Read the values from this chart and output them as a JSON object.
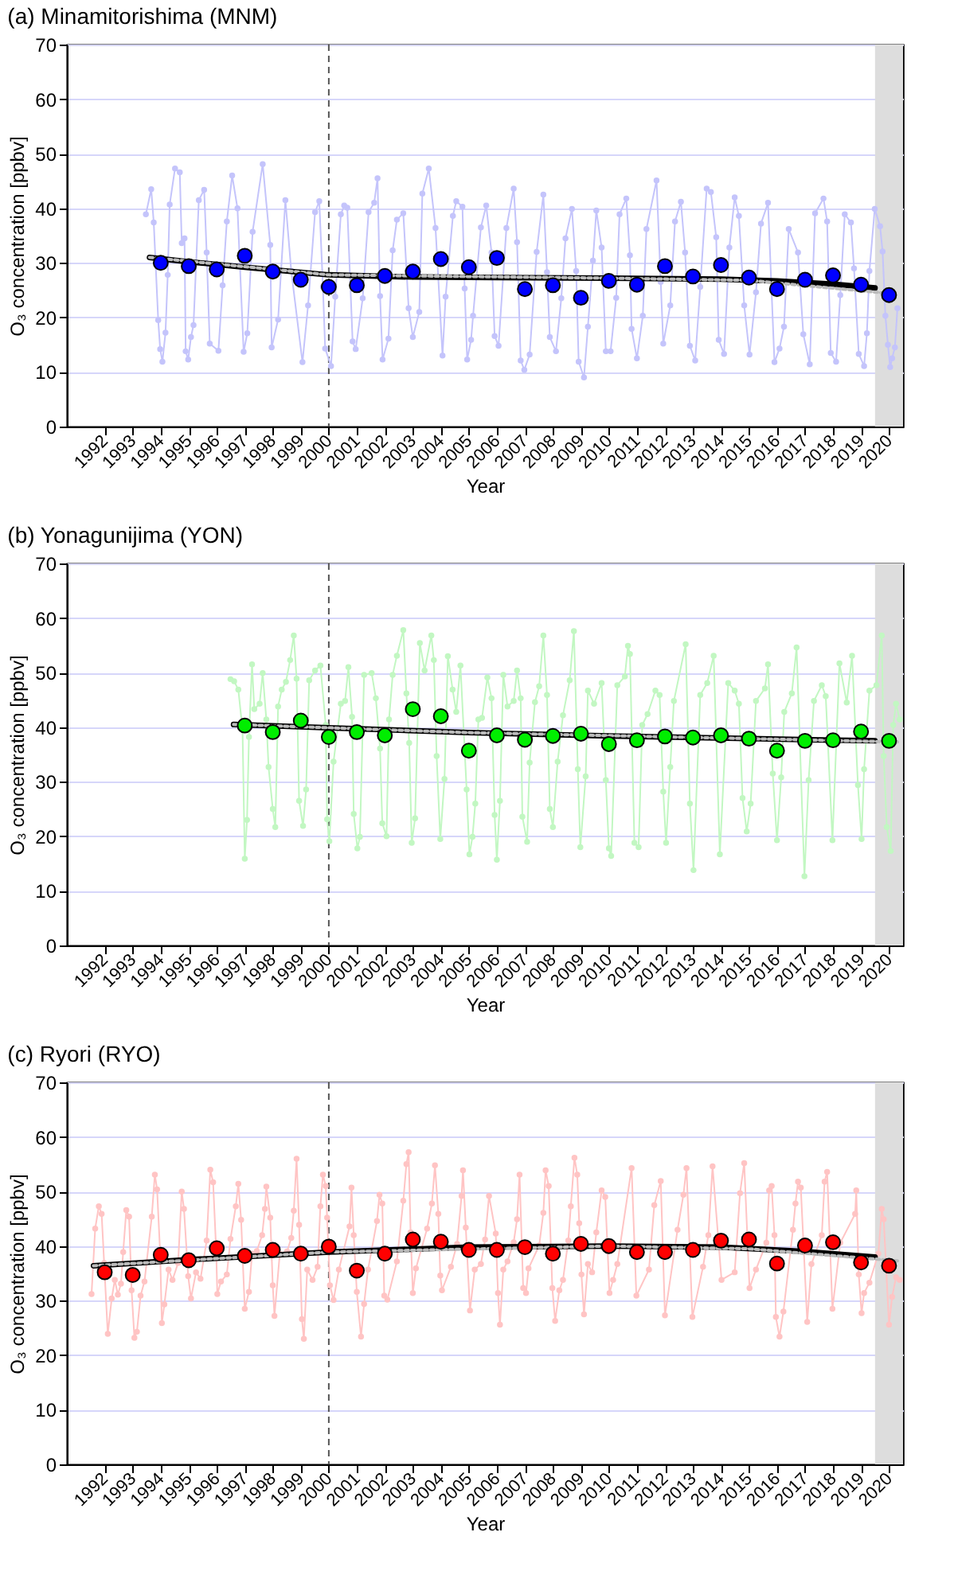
{
  "chart_data": [
    {
      "type": "line",
      "title": "(a) Minamitorishima (MNM)",
      "xlabel": "Year",
      "ylabel": "O₃ concentration [ppbv]",
      "xlim": [
        1990.65,
        2020.5
      ],
      "ylim": [
        0,
        70
      ],
      "xticks": [
        1992,
        1993,
        1994,
        1995,
        1996,
        1997,
        1998,
        1999,
        2000,
        2001,
        2002,
        2003,
        2004,
        2005,
        2006,
        2007,
        2008,
        2009,
        2010,
        2011,
        2012,
        2013,
        2014,
        2015,
        2016,
        2017,
        2018,
        2019,
        2020
      ],
      "yticks": [
        0,
        10,
        20,
        30,
        40,
        50,
        60,
        70
      ],
      "grid": "y",
      "ref_lines": [
        {
          "axis": "x",
          "value": 2000,
          "color": "#555555",
          "line_style": "dashed"
        }
      ],
      "bands": [
        {
          "axis": "x",
          "from": 2019.5,
          "to": 2020.5,
          "color": "#dddddd"
        }
      ],
      "series": [
        {
          "color": "#c4c4fb",
          "marker": "circle",
          "x": [
            1993.47,
            1993.66,
            1993.75,
            1993.91,
            1993.98,
            1994.06,
            1994.17,
            1994.25,
            1994.32,
            1994.51,
            1994.68,
            1994.75,
            1994.85,
            1994.89,
            1994.98,
            1995.08,
            1995.17,
            1995.36,
            1995.55,
            1995.64,
            1995.75,
            1996.06,
            1996.21,
            1996.36,
            1996.55,
            1996.74,
            1996.96,
            1997.09,
            1997.28,
            1997.64,
            1997.91,
            1997.96,
            1998.19,
            1998.45,
            1998.66,
            1999.06,
            1999.26,
            1999.51,
            1999.66,
            1999.79,
            1999.87,
            2000.08,
            2000.23,
            2000.43,
            2000.55,
            2000.66,
            2000.85,
            2000.96,
            2001.21,
            2001.42,
            2001.62,
            2001.74,
            2001.83,
            2001.92,
            2002.13,
            2002.28,
            2002.43,
            2002.66,
            2002.85,
            2003.0,
            2003.23,
            2003.34,
            2003.57,
            2003.81,
            2004.06,
            2004.17,
            2004.43,
            2004.55,
            2004.77,
            2004.85,
            2004.94,
            2005.08,
            2005.15,
            2005.43,
            2005.62,
            2005.81,
            2005.92,
            2006.06,
            2006.34,
            2006.6,
            2006.72,
            2006.85,
            2006.98,
            2007.17,
            2007.42,
            2007.66,
            2007.79,
            2007.89,
            2008.11,
            2008.3,
            2008.45,
            2008.68,
            2008.83,
            2008.92,
            2009.11,
            2009.25,
            2009.43,
            2009.55,
            2009.74,
            2009.89,
            2010.06,
            2010.26,
            2010.38,
            2010.62,
            2010.75,
            2010.81,
            2011.0,
            2011.21,
            2011.34,
            2011.7,
            2011.85,
            2011.94,
            2012.19,
            2012.36,
            2012.57,
            2012.72,
            2012.89,
            2013.08,
            2013.26,
            2013.49,
            2013.64,
            2013.83,
            2013.92,
            2014.11,
            2014.3,
            2014.49,
            2014.64,
            2014.83,
            2015.02,
            2015.25,
            2015.43,
            2015.68,
            2015.91,
            2016.09,
            2016.25,
            2016.42,
            2016.75,
            2016.94,
            2017.17,
            2017.36,
            2017.66,
            2017.79,
            2017.92,
            2018.11,
            2018.26,
            2018.42,
            2018.64,
            2018.75,
            2018.92,
            2019.11,
            2019.21,
            2019.3,
            2019.49,
            2019.68,
            2019.77,
            2019.87,
            2019.96,
            2020.04,
            2020.11,
            2020.21,
            2020.3
          ],
          "values": [
            38.9,
            43.5,
            37.4,
            19.5,
            14.2,
            11.9,
            17.2,
            27.8,
            40.7,
            47.3,
            46.6,
            33.6,
            34.5,
            13.8,
            12.3,
            16.4,
            18.6,
            41.5,
            43.4,
            31.9,
            15.2,
            13.9,
            25.9,
            37.6,
            46.0,
            40.0,
            13.7,
            17.1,
            35.7,
            48.1,
            33.3,
            14.5,
            19.6,
            41.5,
            28.5,
            11.8,
            22.2,
            39.3,
            41.3,
            25.6,
            14.3,
            11.1,
            23.8,
            38.9,
            40.5,
            40.1,
            15.6,
            14.2,
            23.5,
            39.3,
            41.0,
            45.5,
            23.9,
            12.3,
            16.1,
            32.3,
            37.9,
            39.1,
            21.7,
            16.4,
            21.0,
            42.7,
            47.3,
            36.4,
            13.0,
            23.8,
            38.6,
            41.3,
            40.3,
            25.3,
            12.3,
            15.9,
            20.3,
            36.5,
            40.5,
            31.9,
            16.6,
            14.8,
            36.4,
            43.6,
            33.8,
            12.1,
            10.4,
            13.2,
            32.0,
            42.5,
            28.3,
            16.4,
            13.8,
            23.5,
            34.5,
            39.9,
            28.5,
            11.9,
            9.0,
            18.3,
            30.4,
            39.6,
            32.8,
            13.8,
            13.8,
            23.6,
            38.9,
            41.8,
            31.4,
            17.9,
            12.5,
            20.3,
            36.2,
            45.1,
            26.5,
            15.2,
            22.2,
            37.6,
            41.2,
            31.9,
            14.8,
            12.1,
            25.6,
            43.6,
            43.0,
            34.7,
            15.9,
            13.3,
            32.8,
            42.0,
            38.6,
            22.2,
            13.2,
            24.6,
            37.2,
            41.0,
            11.8,
            14.3,
            18.3,
            36.2,
            31.9,
            16.9,
            11.4,
            39.1,
            41.8,
            37.6,
            13.5,
            11.9,
            24.1,
            38.9,
            37.4,
            29.0,
            13.3,
            11.1,
            17.1,
            28.5,
            39.9,
            36.7,
            32.1,
            20.3,
            15.0,
            10.9,
            12.5,
            14.5,
            21.7
          ]
        },
        {
          "type": "scatter",
          "color": "#0000ff",
          "marker": "circle",
          "x": [
            1994,
            1995,
            1996,
            1997,
            1998,
            1999,
            2000,
            2001,
            2002,
            2003,
            2004,
            2005,
            2006,
            2007,
            2008,
            2009,
            2010,
            2011,
            2012,
            2013,
            2014,
            2015,
            2016,
            2017,
            2018,
            2019,
            2020
          ],
          "values": [
            30.0,
            29.4,
            28.8,
            31.3,
            28.4,
            26.9,
            25.6,
            25.9,
            27.6,
            28.4,
            30.7,
            29.2,
            30.9,
            25.2,
            25.9,
            23.6,
            26.7,
            26.0,
            29.4,
            27.5,
            29.6,
            27.3,
            25.2,
            26.9,
            27.7,
            26.0,
            24.1
          ]
        },
        {
          "color": "#000000",
          "x": [
            1993.6,
            1995,
            1997,
            2000,
            2003,
            2006,
            2010,
            2014,
            2016,
            2018,
            2019.5
          ],
          "values": [
            31.0,
            30.2,
            29.2,
            27.8,
            27.4,
            27.3,
            27.2,
            27.0,
            26.7,
            26.1,
            25.4
          ]
        },
        {
          "color": "#bbbbbb",
          "line_style": "dotted",
          "x": [
            1993.6,
            2000,
            2010,
            2015,
            2020.2
          ],
          "values": [
            31.0,
            27.8,
            27.2,
            26.8,
            24.3
          ]
        }
      ]
    },
    {
      "type": "line",
      "title": "(b) Yonagunijima (YON)",
      "xlabel": "Year",
      "ylabel": "O₃ concentration [ppbv]",
      "xlim": [
        1990.65,
        2020.5
      ],
      "ylim": [
        0,
        70
      ],
      "xticks": [
        1992,
        1993,
        1994,
        1995,
        1996,
        1997,
        1998,
        1999,
        2000,
        2001,
        2002,
        2003,
        2004,
        2005,
        2006,
        2007,
        2008,
        2009,
        2010,
        2011,
        2012,
        2013,
        2014,
        2015,
        2016,
        2017,
        2018,
        2019,
        2020
      ],
      "yticks": [
        0,
        10,
        20,
        30,
        40,
        50,
        60,
        70
      ],
      "grid": "y",
      "ref_lines": [
        {
          "axis": "x",
          "value": 2000,
          "color": "#555555",
          "line_style": "dashed"
        }
      ],
      "bands": [
        {
          "axis": "x",
          "from": 2019.5,
          "to": 2020.5,
          "color": "#dddddd"
        }
      ],
      "series": [
        {
          "color": "#c2f7c2",
          "marker": "circle",
          "x": [
            1996.49,
            1996.62,
            1996.77,
            1996.92,
            1997.0,
            1997.08,
            1997.15,
            1997.26,
            1997.34,
            1997.53,
            1997.64,
            1997.77,
            1997.85,
            1998.0,
            1998.09,
            1998.19,
            1998.32,
            1998.47,
            1998.62,
            1998.75,
            1998.85,
            1998.94,
            1999.08,
            1999.19,
            1999.3,
            1999.51,
            1999.7,
            1999.89,
            1999.94,
            2000.02,
            2000.17,
            2000.43,
            2000.58,
            2000.7,
            2000.83,
            2000.89,
            2001.02,
            2001.11,
            2001.26,
            2001.53,
            2001.68,
            2001.83,
            2001.91,
            2002.06,
            2002.15,
            2002.28,
            2002.43,
            2002.66,
            2002.77,
            2002.87,
            2002.96,
            2003.08,
            2003.25,
            2003.42,
            2003.66,
            2003.75,
            2003.85,
            2003.98,
            2004.13,
            2004.25,
            2004.42,
            2004.55,
            2004.7,
            2004.92,
            2005.02,
            2005.13,
            2005.23,
            2005.34,
            2005.47,
            2005.66,
            2005.81,
            2005.92,
            2006.0,
            2006.11,
            2006.23,
            2006.38,
            2006.6,
            2006.72,
            2006.85,
            2006.91,
            2007.08,
            2007.17,
            2007.36,
            2007.51,
            2007.66,
            2007.79,
            2007.89,
            2008.0,
            2008.17,
            2008.36,
            2008.6,
            2008.75,
            2008.89,
            2008.98,
            2009.17,
            2009.25,
            2009.47,
            2009.74,
            2009.89,
            2010.0,
            2010.08,
            2010.3,
            2010.57,
            2010.68,
            2010.75,
            2010.91,
            2011.06,
            2011.19,
            2011.38,
            2011.66,
            2011.81,
            2011.94,
            2012.04,
            2012.19,
            2012.32,
            2012.74,
            2012.89,
            2013.02,
            2013.26,
            2013.51,
            2013.74,
            2013.96,
            2014.26,
            2014.49,
            2014.64,
            2014.77,
            2014.92,
            2015.06,
            2015.25,
            2015.57,
            2015.68,
            2015.85,
            2016.0,
            2016.15,
            2016.26,
            2016.53,
            2016.7,
            2016.98,
            2017.13,
            2017.32,
            2017.6,
            2017.74,
            2017.98,
            2018.23,
            2018.49,
            2018.68,
            2018.89,
            2019.02,
            2019.11,
            2019.3,
            2019.55,
            2019.74,
            2019.81,
            2019.92,
            2020.06,
            2020.15,
            2020.25,
            2020.38
          ],
          "values": [
            48.8,
            48.4,
            46.9,
            39.5,
            15.9,
            23.0,
            38.2,
            51.5,
            43.3,
            44.3,
            49.9,
            41.4,
            32.7,
            25.0,
            21.7,
            43.8,
            46.9,
            48.3,
            52.3,
            56.8,
            48.9,
            26.5,
            21.9,
            28.6,
            48.6,
            50.4,
            51.3,
            40.4,
            23.1,
            19.1,
            33.7,
            44.3,
            44.8,
            51.0,
            41.9,
            24.1,
            17.8,
            19.9,
            49.6,
            49.9,
            45.3,
            36.1,
            22.4,
            20.0,
            41.4,
            49.6,
            53.1,
            57.8,
            46.2,
            37.1,
            18.8,
            23.3,
            55.4,
            50.4,
            56.8,
            52.3,
            34.7,
            19.5,
            30.5,
            53.0,
            46.9,
            42.8,
            51.3,
            28.6,
            16.7,
            19.9,
            26.0,
            41.4,
            41.7,
            49.1,
            45.3,
            23.9,
            15.7,
            26.5,
            49.6,
            43.8,
            44.8,
            50.4,
            45.3,
            23.6,
            19.0,
            33.5,
            44.6,
            47.5,
            56.8,
            45.9,
            25.0,
            21.7,
            33.7,
            42.2,
            48.6,
            57.6,
            32.3,
            18.0,
            31.0,
            46.7,
            44.3,
            48.1,
            30.3,
            17.8,
            16.4,
            47.7,
            49.3,
            54.9,
            53.4,
            18.8,
            18.0,
            40.4,
            42.4,
            46.7,
            45.9,
            28.2,
            18.8,
            32.7,
            44.8,
            55.2,
            26.0,
            13.8,
            45.9,
            48.1,
            53.1,
            16.7,
            48.1,
            46.7,
            44.3,
            27.0,
            20.9,
            26.0,
            44.8,
            47.1,
            51.5,
            31.5,
            19.3,
            30.8,
            42.8,
            46.2,
            54.6,
            12.7,
            30.3,
            44.8,
            47.7,
            45.7,
            19.3,
            51.7,
            44.5,
            53.1,
            29.4,
            19.5,
            32.3,
            46.7,
            47.7,
            56.8,
            34.7,
            21.7,
            17.3,
            40.4,
            44.3,
            41.4
          ]
        },
        {
          "type": "scatter",
          "color": "#00ee00",
          "marker": "circle",
          "x": [
            1997,
            1998,
            1999,
            2000,
            2001,
            2002,
            2003,
            2004,
            2005,
            2006,
            2007,
            2008,
            2009,
            2010,
            2011,
            2012,
            2013,
            2014,
            2015,
            2016,
            2017,
            2018,
            2019,
            2020
          ],
          "values": [
            40.3,
            39.1,
            41.2,
            38.2,
            39.1,
            38.5,
            43.3,
            42.0,
            35.7,
            38.5,
            37.7,
            38.4,
            38.8,
            36.9,
            37.6,
            38.3,
            38.1,
            38.5,
            37.9,
            35.7,
            37.5,
            37.6,
            39.2,
            37.5
          ]
        },
        {
          "color": "#000000",
          "x": [
            1996.6,
            2000,
            2005,
            2010,
            2015,
            2019.5
          ],
          "values": [
            40.5,
            39.9,
            39.0,
            38.4,
            37.9,
            37.5
          ]
        },
        {
          "color": "#bbbbbb",
          "line_style": "dotted",
          "x": [
            1996.6,
            2005,
            2015,
            2020.3
          ],
          "values": [
            40.5,
            39.0,
            37.9,
            37.3
          ]
        }
      ]
    },
    {
      "type": "line",
      "title": "(c) Ryori (RYO)",
      "xlabel": "Year",
      "ylabel": "O₃ concentration [ppbv]",
      "xlim": [
        1990.65,
        2020.5
      ],
      "ylim": [
        0,
        70
      ],
      "xticks": [
        1992,
        1993,
        1994,
        1995,
        1996,
        1997,
        1998,
        1999,
        2000,
        2001,
        2002,
        2003,
        2004,
        2005,
        2006,
        2007,
        2008,
        2009,
        2010,
        2011,
        2012,
        2013,
        2014,
        2015,
        2016,
        2017,
        2018,
        2019,
        2020
      ],
      "yticks": [
        0,
        10,
        20,
        30,
        40,
        50,
        60,
        70
      ],
      "grid": "y",
      "ref_lines": [
        {
          "axis": "x",
          "value": 2000,
          "color": "#555555",
          "line_style": "dashed"
        }
      ],
      "bands": [
        {
          "axis": "x",
          "from": 2019.5,
          "to": 2020.5,
          "color": "#dddddd"
        }
      ],
      "series": [
        {
          "color": "#ffc4c4",
          "marker": "circle",
          "x": [
            1991.53,
            1991.66,
            1991.79,
            1991.89,
            1991.98,
            1992.11,
            1992.25,
            1992.36,
            1992.47,
            1992.58,
            1992.66,
            1992.77,
            1992.87,
            1992.96,
            1993.06,
            1993.15,
            1993.28,
            1993.42,
            1993.68,
            1993.79,
            1993.87,
            1993.98,
            1994.04,
            1994.13,
            1994.28,
            1994.42,
            1994.62,
            1994.75,
            1994.83,
            1994.98,
            1995.08,
            1995.26,
            1995.42,
            1995.64,
            1995.77,
            1995.87,
            1995.98,
            1996.02,
            1996.15,
            1996.36,
            1996.49,
            1996.68,
            1996.77,
            1996.87,
            1997.0,
            1997.15,
            1997.26,
            1997.43,
            1997.62,
            1997.72,
            1997.77,
            1997.91,
            1998.0,
            1998.06,
            1998.25,
            1998.51,
            1998.66,
            1998.75,
            1998.85,
            1998.94,
            1999.04,
            1999.11,
            1999.23,
            1999.42,
            1999.6,
            1999.7,
            1999.79,
            1999.89,
            1999.94,
            2000.04,
            2000.17,
            2000.36,
            2000.74,
            2000.81,
            2000.89,
            2001.0,
            2001.15,
            2001.26,
            2001.4,
            2001.72,
            2001.81,
            2001.91,
            2001.98,
            2002.09,
            2002.43,
            2002.66,
            2002.77,
            2002.85,
            2002.92,
            2003.0,
            2003.11,
            2003.51,
            2003.68,
            2003.79,
            2003.91,
            2003.98,
            2004.04,
            2004.36,
            2004.58,
            2004.74,
            2004.79,
            2004.89,
            2005.04,
            2005.21,
            2005.43,
            2005.58,
            2005.72,
            2005.96,
            2006.04,
            2006.11,
            2006.23,
            2006.38,
            2006.6,
            2006.72,
            2006.81,
            2006.94,
            2007.04,
            2007.13,
            2007.51,
            2007.66,
            2007.74,
            2007.85,
            2007.98,
            2008.08,
            2008.23,
            2008.36,
            2008.55,
            2008.64,
            2008.77,
            2008.87,
            2008.94,
            2009.02,
            2009.11,
            2009.25,
            2009.4,
            2009.55,
            2009.74,
            2009.87,
            2010.02,
            2010.15,
            2010.3,
            2010.81,
            2010.98,
            2011.43,
            2011.62,
            2011.85,
            2012.0,
            2012.45,
            2012.66,
            2012.77,
            2012.98,
            2013.36,
            2013.55,
            2013.7,
            2014.02,
            2014.49,
            2014.68,
            2014.83,
            2015.02,
            2015.25,
            2015.62,
            2015.72,
            2015.81,
            2015.91,
            2015.96,
            2016.09,
            2016.23,
            2016.57,
            2016.66,
            2016.75,
            2016.85,
            2017.08,
            2017.23,
            2017.6,
            2017.7,
            2017.79,
            2017.98,
            2018.26,
            2018.79,
            2018.83,
            2018.92,
            2019.02,
            2019.11,
            2019.3,
            2019.62,
            2019.74,
            2019.81,
            2020.0,
            2020.11,
            2020.25,
            2020.38
          ],
          "values": [
            31.2,
            43.2,
            47.3,
            45.9,
            36.9,
            23.9,
            30.4,
            33.8,
            31.1,
            33.1,
            38.9,
            46.6,
            45.4,
            31.9,
            23.2,
            24.3,
            30.9,
            33.5,
            45.4,
            53.1,
            50.4,
            38.6,
            25.9,
            29.3,
            35.7,
            33.8,
            36.9,
            50.0,
            46.8,
            34.5,
            30.4,
            35.2,
            34.0,
            41.0,
            54.0,
            51.7,
            39.1,
            31.2,
            33.5,
            34.8,
            41.3,
            47.3,
            51.4,
            44.8,
            28.5,
            31.6,
            38.6,
            39.1,
            42.0,
            46.8,
            50.9,
            45.2,
            32.8,
            27.2,
            38.6,
            39.0,
            41.5,
            46.5,
            56.0,
            43.9,
            26.6,
            23.0,
            35.7,
            33.8,
            36.2,
            47.3,
            53.1,
            51.0,
            45.2,
            32.8,
            30.1,
            35.7,
            43.6,
            50.7,
            42.0,
            31.6,
            23.4,
            29.4,
            35.7,
            44.6,
            49.4,
            47.8,
            30.9,
            30.2,
            37.2,
            48.3,
            55.0,
            57.2,
            42.5,
            31.4,
            35.9,
            43.2,
            47.8,
            54.8,
            45.9,
            34.6,
            31.9,
            36.2,
            40.4,
            49.2,
            53.9,
            43.4,
            28.2,
            35.7,
            36.7,
            41.2,
            49.2,
            42.3,
            31.4,
            25.6,
            35.7,
            37.2,
            40.7,
            44.9,
            53.1,
            32.3,
            31.4,
            35.9,
            40.1,
            46.1,
            53.9,
            51.0,
            32.3,
            26.3,
            31.9,
            33.8,
            41.0,
            47.3,
            56.2,
            53.1,
            44.2,
            34.8,
            27.5,
            36.7,
            35.2,
            42.5,
            50.2,
            49.0,
            31.4,
            33.8,
            36.7,
            54.3,
            30.9,
            35.7,
            47.5,
            51.9,
            27.3,
            43.0,
            49.4,
            54.3,
            27.0,
            36.2,
            42.0,
            54.6,
            33.8,
            35.2,
            49.7,
            55.2,
            32.3,
            35.7,
            40.6,
            50.2,
            51.0,
            42.0,
            27.0,
            23.4,
            28.0,
            43.0,
            47.8,
            51.8,
            50.7,
            26.1,
            36.7,
            42.0,
            51.8,
            53.6,
            28.5,
            40.6,
            45.9,
            50.2,
            34.8,
            27.7,
            31.4,
            33.3,
            38.6,
            46.8,
            44.9,
            25.6,
            30.7,
            34.3,
            33.8
          ]
        },
        {
          "type": "scatter",
          "color": "#ff0000",
          "marker": "circle",
          "x": [
            1992,
            1993,
            1994,
            1995,
            1996,
            1997,
            1998,
            1999,
            2000,
            2001,
            2002,
            2003,
            2004,
            2005,
            2006,
            2007,
            2008,
            2009,
            2010,
            2011,
            2012,
            2013,
            2014,
            2015,
            2016,
            2017,
            2018,
            2019,
            2020
          ],
          "values": [
            35.2,
            34.7,
            38.4,
            37.4,
            39.6,
            38.2,
            39.3,
            38.6,
            39.9,
            35.5,
            38.6,
            41.2,
            40.8,
            39.3,
            39.3,
            39.8,
            38.6,
            40.4,
            40.0,
            38.9,
            38.9,
            39.3,
            41.0,
            41.2,
            36.8,
            40.1,
            40.7,
            37.0,
            36.4
          ]
        },
        {
          "color": "#000000",
          "x": [
            1991.6,
            1995,
            2000,
            2005,
            2010,
            2014,
            2017,
            2019.5
          ],
          "values": [
            36.4,
            37.5,
            38.9,
            39.8,
            40.0,
            39.8,
            39.0,
            38.0
          ]
        },
        {
          "color": "#bbbbbb",
          "line_style": "dotted",
          "x": [
            1991.6,
            2000,
            2010,
            2015,
            2020.3
          ],
          "values": [
            36.4,
            38.9,
            40.0,
            39.5,
            37.3
          ]
        }
      ]
    }
  ]
}
